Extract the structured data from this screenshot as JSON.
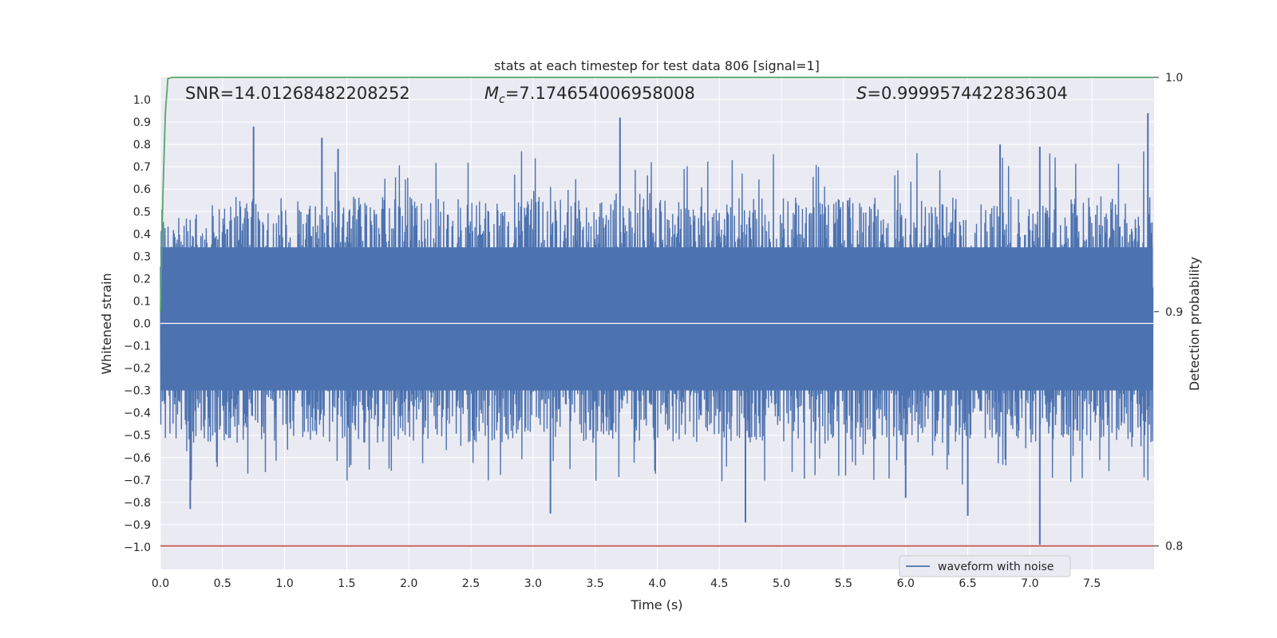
{
  "chart_data": {
    "type": "line",
    "title": "stats at each timestep for test data 806 [signal=1]",
    "xlabel": "Time (s)",
    "ylabel": "Whitened strain",
    "y2label": "Detection probability",
    "xlim": [
      0.0,
      8.0
    ],
    "ylim": [
      -1.1,
      1.1
    ],
    "y2lim": [
      0.79,
      1.0
    ],
    "x_ticks": [
      "0.0",
      "0.5",
      "1.0",
      "1.5",
      "2.0",
      "2.5",
      "3.0",
      "3.5",
      "4.0",
      "4.5",
      "5.0",
      "5.5",
      "6.0",
      "6.5",
      "7.0",
      "7.5"
    ],
    "y_ticks": [
      "1.0",
      "0.9",
      "0.8",
      "0.7",
      "0.6",
      "0.5",
      "0.4",
      "0.3",
      "0.2",
      "0.1",
      "0.0",
      "−0.1",
      "−0.2",
      "−0.3",
      "−0.4",
      "−0.5",
      "−0.6",
      "−0.7",
      "−0.8",
      "−0.9",
      "−1.0"
    ],
    "y2_ticks": [
      "1.0",
      "0.9",
      "0.8"
    ],
    "annotations": {
      "snr": "SNR=14.01268482208252",
      "mc_symbol": "M",
      "mc_sub": "c",
      "mc_value": "=7.174654006958008",
      "s_symbol": "S",
      "s_value": "=0.9999574422836304"
    },
    "legend": {
      "label": "waveform with noise",
      "placement": "lower-right"
    },
    "grid": true,
    "series": [
      {
        "name": "waveform with noise",
        "color": "#4c72b0",
        "envelope_typical": [
          -0.48,
          0.52
        ],
        "x_range": [
          0.0,
          7.99
        ],
        "notable_peaks": [
          {
            "x": 0.75,
            "y": 0.88
          },
          {
            "x": 1.3,
            "y": 0.83
          },
          {
            "x": 1.43,
            "y": 0.78
          },
          {
            "x": 3.7,
            "y": 0.92
          },
          {
            "x": 6.76,
            "y": 0.8
          },
          {
            "x": 7.08,
            "y": 0.79
          },
          {
            "x": 7.95,
            "y": 0.94
          },
          {
            "x": 0.24,
            "y": -0.83
          },
          {
            "x": 3.14,
            "y": -0.85
          },
          {
            "x": 4.71,
            "y": -0.89
          },
          {
            "x": 6.0,
            "y": -0.78
          },
          {
            "x": 6.5,
            "y": -0.86
          },
          {
            "x": 7.08,
            "y": -0.99
          }
        ]
      },
      {
        "name": "detection probability",
        "color": "#55a868",
        "axis": "right",
        "x": [
          0.0,
          0.02,
          0.04,
          0.06,
          0.1,
          8.0
        ],
        "y": [
          0.9,
          0.95,
          0.985,
          0.9995,
          1.0,
          1.0
        ]
      },
      {
        "name": "threshold",
        "color": "#c44e52",
        "axis": "right",
        "y": 0.8
      }
    ]
  }
}
